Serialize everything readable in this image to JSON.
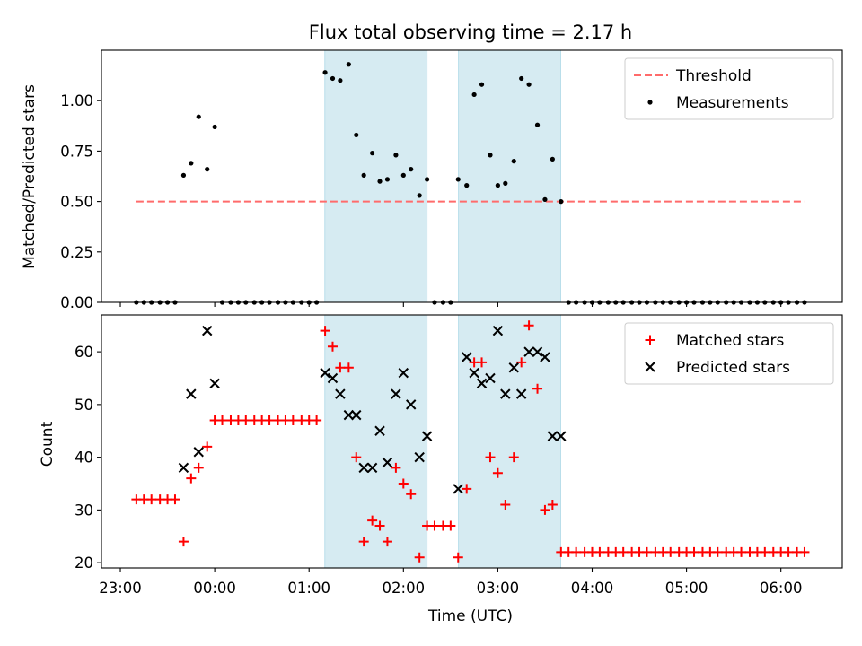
{
  "figure_title": "Flux total observing time = 2.17 h",
  "chart_data": [
    {
      "type": "scatter",
      "title": "Flux total observing time = 2.17 h",
      "xlabel": "",
      "ylabel": "Matched/Predicted stars",
      "x_unit": "hours from 00:00 UTC",
      "xlim": [
        -1.2,
        6.65
      ],
      "ylim": [
        0,
        1.25
      ],
      "yticks": [
        0.0,
        0.25,
        0.5,
        0.75,
        1.0
      ],
      "ytick_labels": [
        "0.00",
        "0.25",
        "0.50",
        "0.75",
        "1.00"
      ],
      "xticks": [
        -1,
        0,
        1,
        2,
        3,
        4,
        5,
        6
      ],
      "show_xtick_labels": false,
      "shaded_intervals": [
        [
          1.167,
          2.25
        ],
        [
          2.583,
          3.667
        ]
      ],
      "shade_color": "#add8e6",
      "grid": false,
      "legend": {
        "position": "top-right",
        "entries": [
          {
            "label": "Threshold",
            "kind": "dashed-line",
            "color": "#ff6b6b"
          },
          {
            "label": "Measurements",
            "kind": "dot",
            "color": "#000000"
          }
        ]
      },
      "threshold": {
        "name": "Threshold",
        "value": 0.5,
        "x_start": -0.83,
        "x_end": 6.25,
        "color": "#ff6b6b"
      },
      "series": [
        {
          "name": "Measurements",
          "marker": "dot",
          "color": "#000000",
          "x": [
            -0.83,
            -0.75,
            -0.67,
            -0.58,
            -0.5,
            -0.42,
            -0.33,
            -0.25,
            -0.17,
            -0.08,
            0.0,
            0.08,
            0.17,
            0.25,
            0.33,
            0.42,
            0.5,
            0.58,
            0.67,
            0.75,
            0.83,
            0.92,
            1.0,
            1.08,
            1.17,
            1.25,
            1.33,
            1.42,
            1.5,
            1.58,
            1.67,
            1.75,
            1.83,
            1.92,
            2.0,
            2.08,
            2.17,
            2.25,
            2.33,
            2.42,
            2.5,
            2.58,
            2.67,
            2.75,
            2.83,
            2.92,
            3.0,
            3.08,
            3.17,
            3.25,
            3.33,
            3.42,
            3.5,
            3.58,
            3.67,
            3.75,
            3.83,
            3.92,
            4.0,
            4.08,
            4.17,
            4.25,
            4.33,
            4.42,
            4.5,
            4.58,
            4.67,
            4.75,
            4.83,
            4.92,
            5.0,
            5.08,
            5.17,
            5.25,
            5.33,
            5.42,
            5.5,
            5.58,
            5.67,
            5.75,
            5.83,
            5.92,
            6.0,
            6.08,
            6.17,
            6.25
          ],
          "y": [
            0,
            0,
            0,
            0,
            0,
            0,
            0.63,
            0.69,
            0.92,
            0.66,
            0.87,
            0,
            0,
            0,
            0,
            0,
            0,
            0,
            0,
            0,
            0,
            0,
            0,
            0,
            1.14,
            1.11,
            1.1,
            1.18,
            0.83,
            0.63,
            0.74,
            0.6,
            0.61,
            0.73,
            0.63,
            0.66,
            0.53,
            0.61,
            0,
            0,
            0,
            0.61,
            0.58,
            1.03,
            1.08,
            0.73,
            0.58,
            0.59,
            0.7,
            1.11,
            1.08,
            0.88,
            0.51,
            0.71,
            0.5,
            0,
            0,
            0,
            0,
            0,
            0,
            0,
            0,
            0,
            0,
            0,
            0,
            0,
            0,
            0,
            0,
            0,
            0,
            0,
            0,
            0,
            0,
            0,
            0,
            0,
            0,
            0,
            0,
            0,
            0,
            0
          ]
        }
      ]
    },
    {
      "type": "scatter",
      "title": "",
      "xlabel": "Time (UTC)",
      "ylabel": "Count",
      "x_unit": "hours from 00:00 UTC",
      "xlim": [
        -1.2,
        6.65
      ],
      "ylim": [
        19,
        67
      ],
      "yticks": [
        20,
        30,
        40,
        50,
        60
      ],
      "ytick_labels": [
        "20",
        "30",
        "40",
        "50",
        "60"
      ],
      "xticks": [
        -1,
        0,
        1,
        2,
        3,
        4,
        5,
        6
      ],
      "xtick_labels": [
        "23:00",
        "00:00",
        "01:00",
        "02:00",
        "03:00",
        "04:00",
        "05:00",
        "06:00"
      ],
      "shaded_intervals": [
        [
          1.167,
          2.25
        ],
        [
          2.583,
          3.667
        ]
      ],
      "shade_color": "#add8e6",
      "grid": false,
      "legend": {
        "position": "top-right",
        "entries": [
          {
            "label": "Matched stars",
            "kind": "plus",
            "color": "#ff0000"
          },
          {
            "label": "Predicted stars",
            "kind": "x",
            "color": "#000000"
          }
        ]
      },
      "series": [
        {
          "name": "Matched stars",
          "marker": "plus",
          "color": "#ff0000",
          "x": [
            -0.83,
            -0.75,
            -0.67,
            -0.58,
            -0.5,
            -0.42,
            -0.33,
            -0.25,
            -0.17,
            -0.08,
            0.0,
            0.08,
            0.17,
            0.25,
            0.33,
            0.42,
            0.5,
            0.58,
            0.67,
            0.75,
            0.83,
            0.92,
            1.0,
            1.08,
            1.17,
            1.25,
            1.33,
            1.42,
            1.5,
            1.58,
            1.67,
            1.75,
            1.83,
            1.92,
            2.0,
            2.08,
            2.17,
            2.25,
            2.33,
            2.42,
            2.5,
            2.58,
            2.67,
            2.75,
            2.83,
            2.92,
            3.0,
            3.08,
            3.17,
            3.25,
            3.33,
            3.42,
            3.5,
            3.58,
            3.67,
            3.75,
            3.83,
            3.92,
            4.0,
            4.08,
            4.17,
            4.25,
            4.33,
            4.42,
            4.5,
            4.58,
            4.67,
            4.75,
            4.83,
            4.92,
            5.0,
            5.08,
            5.17,
            5.25,
            5.33,
            5.42,
            5.5,
            5.58,
            5.67,
            5.75,
            5.83,
            5.92,
            6.0,
            6.08,
            6.17,
            6.25
          ],
          "y": [
            32,
            32,
            32,
            32,
            32,
            32,
            24,
            36,
            38,
            42,
            47,
            47,
            47,
            47,
            47,
            47,
            47,
            47,
            47,
            47,
            47,
            47,
            47,
            47,
            64,
            61,
            57,
            57,
            40,
            24,
            28,
            27,
            24,
            38,
            35,
            33,
            21,
            27,
            27,
            27,
            27,
            21,
            34,
            58,
            58,
            40,
            37,
            31,
            40,
            58,
            65,
            53,
            30,
            31,
            22,
            22,
            22,
            22,
            22,
            22,
            22,
            22,
            22,
            22,
            22,
            22,
            22,
            22,
            22,
            22,
            22,
            22,
            22,
            22,
            22,
            22,
            22,
            22,
            22,
            22,
            22,
            22,
            22,
            22,
            22,
            22
          ]
        },
        {
          "name": "Predicted stars",
          "marker": "x",
          "color": "#000000",
          "x": [
            -0.33,
            -0.25,
            -0.17,
            -0.08,
            0.0,
            1.17,
            1.25,
            1.33,
            1.42,
            1.5,
            1.58,
            1.67,
            1.75,
            1.83,
            1.92,
            2.0,
            2.08,
            2.17,
            2.25,
            2.58,
            2.67,
            2.75,
            2.83,
            2.92,
            3.0,
            3.08,
            3.17,
            3.25,
            3.33,
            3.42,
            3.5,
            3.58,
            3.67
          ],
          "y": [
            38,
            52,
            41,
            64,
            54,
            56,
            55,
            52,
            48,
            48,
            38,
            38,
            45,
            39,
            52,
            56,
            50,
            40,
            44,
            34,
            59,
            56,
            54,
            55,
            64,
            52,
            57,
            52,
            60,
            60,
            59,
            44,
            44
          ]
        }
      ]
    }
  ]
}
